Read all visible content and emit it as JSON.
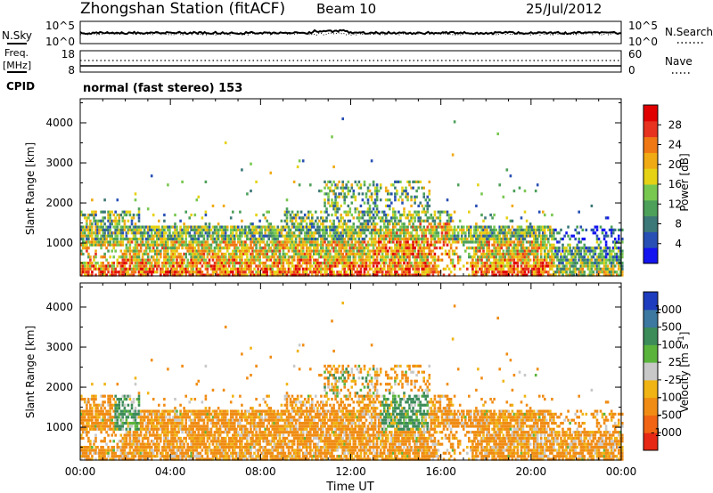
{
  "header": {
    "station": "Zhongshan Station (fitACF)",
    "beam": "Beam 10",
    "date": "25/Jul/2012"
  },
  "noise_panel": {
    "left_label": "N.Sky",
    "right_label": "N.Search",
    "left_ticks": [
      "10^5",
      "10^0"
    ],
    "right_ticks": [
      "10^5",
      "10^0"
    ]
  },
  "freq_panel": {
    "left_label": "Freq.",
    "left_unit": "[MHz]",
    "right_label": "Nave",
    "left_ticks": [
      "18",
      "8"
    ],
    "right_ticks": [
      "60",
      "0"
    ]
  },
  "cpid": {
    "label": "CPID",
    "text": "normal (fast stereo) 153"
  },
  "chart_data": [
    {
      "type": "heatmap",
      "title": "",
      "ylabel": "Slant Range [km]",
      "xlabel": "",
      "ylim": [
        180,
        4600
      ],
      "yticks": [
        "4000",
        "3000",
        "2000",
        "1000"
      ],
      "colorbar": {
        "label": "Power [dB]",
        "ticks": [
          "28",
          "24",
          "20",
          "16",
          "12",
          "8",
          "4"
        ],
        "range": [
          0,
          30
        ],
        "colors": [
          "#1414f0",
          "#2850b4",
          "#3c7878",
          "#4ca05a",
          "#78c850",
          "#e6d214",
          "#f0aa14",
          "#f07814",
          "#e6321e",
          "#e10000"
        ]
      }
    },
    {
      "type": "heatmap",
      "title": "",
      "ylabel": "Slant Range [km]",
      "xlabel": "Time UT",
      "ylim": [
        180,
        4600
      ],
      "yticks": [
        "4000",
        "3000",
        "2000",
        "1000"
      ],
      "xticks": [
        "00:00",
        "04:00",
        "08:00",
        "12:00",
        "16:00",
        "20:00",
        "00:00"
      ],
      "xlim_hours": [
        0,
        24
      ],
      "colorbar": {
        "label": "Velocity [m s^-1]",
        "ticks": [
          "1000",
          "500",
          "100",
          "25",
          "-25",
          "-100",
          "-500",
          "-1000"
        ],
        "range": [
          -1000,
          1000
        ],
        "colors": [
          "#1e3cbe",
          "#3c78a0",
          "#3c8c5a",
          "#5ab43c",
          "#c8c8c8",
          "#f0b414",
          "#f08c14",
          "#f06414",
          "#e62814"
        ]
      }
    }
  ]
}
